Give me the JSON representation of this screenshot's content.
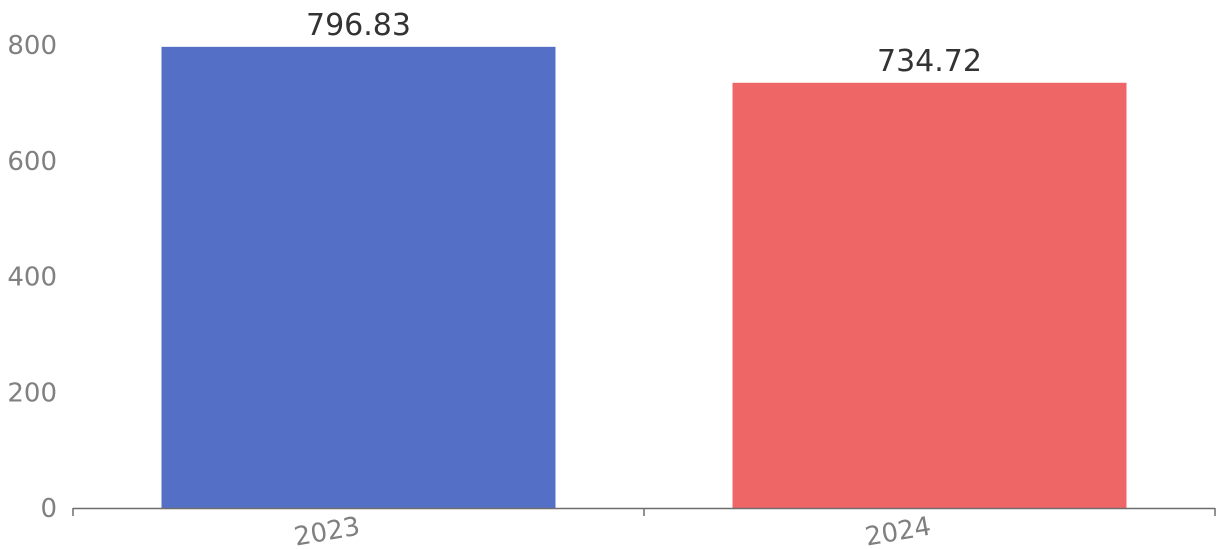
{
  "chart_data": {
    "type": "bar",
    "categories": [
      "2023",
      "2024"
    ],
    "values": [
      796.83,
      734.72
    ],
    "value_labels": [
      "796.83",
      "734.72"
    ],
    "bar_colors": [
      "#5470c6",
      "#ee6666"
    ],
    "title": "",
    "xlabel": "",
    "ylabel": "",
    "ylim": [
      0,
      800
    ],
    "yticks": [
      "0",
      "200",
      "400",
      "600",
      "800"
    ],
    "grid": false,
    "legend": "none"
  }
}
